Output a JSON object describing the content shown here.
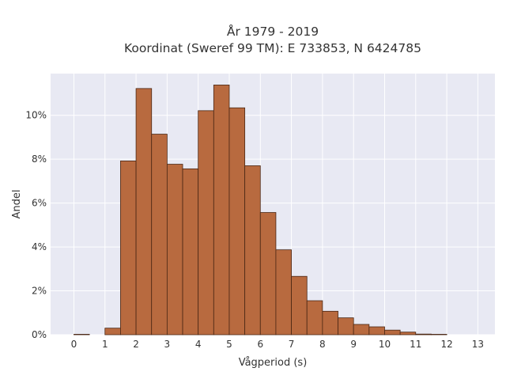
{
  "chart_data": {
    "type": "bar",
    "title": "År 1979 - 2019",
    "subtitle": "Koordinat (Sweref 99 TM): E 733853, N 6424785",
    "xlabel": "Vågperiod (s)",
    "ylabel": "Andel",
    "x_ticks": [
      0,
      1,
      2,
      3,
      4,
      5,
      6,
      7,
      8,
      9,
      10,
      11,
      12,
      13
    ],
    "x_tick_labels": [
      "0",
      "1",
      "2",
      "3",
      "4",
      "5",
      "6",
      "7",
      "8",
      "9",
      "10",
      "11",
      "12",
      "13"
    ],
    "y_ticks": [
      0,
      2,
      4,
      6,
      8,
      10
    ],
    "y_tick_labels": [
      "0%",
      "2%",
      "4%",
      "6%",
      "8%",
      "10%"
    ],
    "xlim": [
      -0.75,
      13.55
    ],
    "ylim": [
      0,
      11.9
    ],
    "bin_width": 0.5,
    "bins": [
      {
        "start": 0.0,
        "end": 0.5,
        "value": 0.02
      },
      {
        "start": 0.5,
        "end": 1.0,
        "value": 0.0
      },
      {
        "start": 1.0,
        "end": 1.5,
        "value": 0.3
      },
      {
        "start": 1.5,
        "end": 2.0,
        "value": 7.92
      },
      {
        "start": 2.0,
        "end": 2.5,
        "value": 11.22
      },
      {
        "start": 2.5,
        "end": 3.0,
        "value": 9.14
      },
      {
        "start": 3.0,
        "end": 3.5,
        "value": 7.77
      },
      {
        "start": 3.5,
        "end": 4.0,
        "value": 7.56
      },
      {
        "start": 4.0,
        "end": 4.5,
        "value": 10.21
      },
      {
        "start": 4.5,
        "end": 5.0,
        "value": 11.38
      },
      {
        "start": 5.0,
        "end": 5.5,
        "value": 10.34
      },
      {
        "start": 5.5,
        "end": 6.0,
        "value": 7.7
      },
      {
        "start": 6.0,
        "end": 6.5,
        "value": 5.57
      },
      {
        "start": 6.5,
        "end": 7.0,
        "value": 3.87
      },
      {
        "start": 7.0,
        "end": 7.5,
        "value": 2.66
      },
      {
        "start": 7.5,
        "end": 8.0,
        "value": 1.55
      },
      {
        "start": 8.0,
        "end": 8.5,
        "value": 1.07
      },
      {
        "start": 8.5,
        "end": 9.0,
        "value": 0.77
      },
      {
        "start": 9.0,
        "end": 9.5,
        "value": 0.47
      },
      {
        "start": 9.5,
        "end": 10.0,
        "value": 0.36
      },
      {
        "start": 10.0,
        "end": 10.5,
        "value": 0.21
      },
      {
        "start": 10.5,
        "end": 11.0,
        "value": 0.12
      },
      {
        "start": 11.0,
        "end": 11.5,
        "value": 0.03
      },
      {
        "start": 11.5,
        "end": 12.0,
        "value": 0.02
      }
    ],
    "grid": true,
    "legend": false,
    "colors": {
      "bar_fill": "#b86a3f",
      "bar_stroke": "#4a2714",
      "plot_background": "#e8e9f3",
      "grid": "#ffffff",
      "text": "#333333"
    }
  }
}
